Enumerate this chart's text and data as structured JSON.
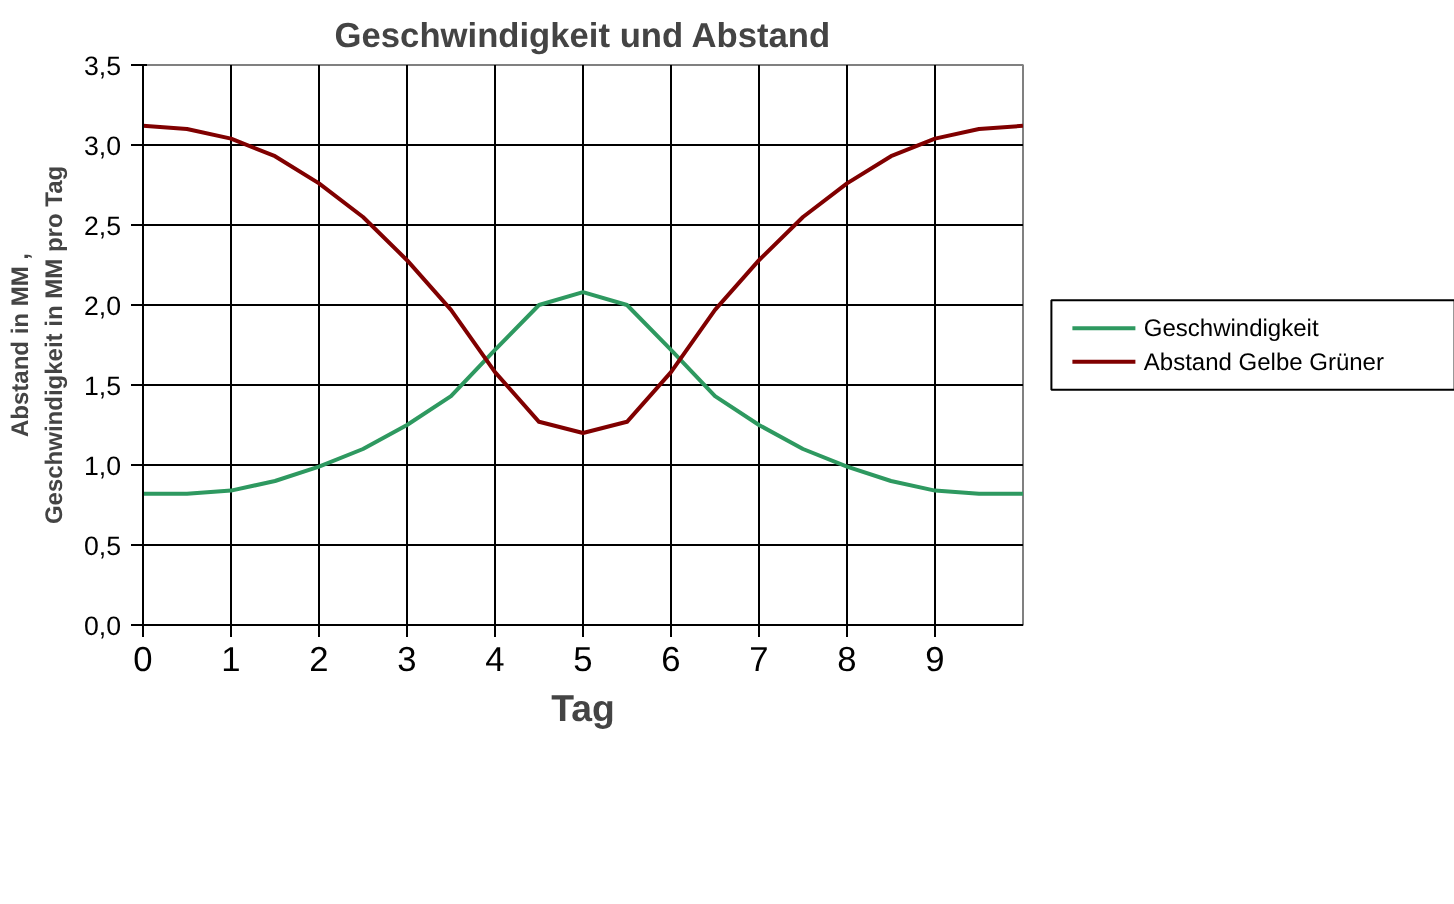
{
  "chart_data": {
    "type": "line",
    "title": "Geschwindigkeit und Abstand",
    "xlabel": "Tag",
    "ylabel": "Abstand in MM ,\nGeschwindigkeit in MM pro Tag",
    "x": [
      0,
      0.5,
      1,
      1.5,
      2,
      2.5,
      3,
      3.5,
      4,
      4.5,
      5,
      5.5,
      6,
      6.5,
      7,
      7.5,
      8,
      8.5,
      9,
      9.5,
      10
    ],
    "series": [
      {
        "name": "Geschwindigkeit",
        "color": "#2e9960",
        "values": [
          0.82,
          0.82,
          0.84,
          0.9,
          0.99,
          1.1,
          1.25,
          1.43,
          1.72,
          2.0,
          2.08,
          2.0,
          1.72,
          1.43,
          1.25,
          1.1,
          0.99,
          0.9,
          0.84,
          0.82,
          0.82
        ]
      },
      {
        "name": "Abstand Gelbe Grüner",
        "color": "#800000",
        "values": [
          3.12,
          3.1,
          3.04,
          2.93,
          2.76,
          2.55,
          2.28,
          1.97,
          1.58,
          1.27,
          1.2,
          1.27,
          1.58,
          1.97,
          2.28,
          2.55,
          2.76,
          2.93,
          3.04,
          3.1,
          3.12
        ]
      }
    ],
    "xlim": [
      0,
      10
    ],
    "xticks": [
      0,
      1,
      2,
      3,
      4,
      5,
      6,
      7,
      8,
      9
    ],
    "ylim": [
      0,
      3.5
    ],
    "yticks": [
      {
        "value": 0,
        "label": "0,0"
      },
      {
        "value": 0.5,
        "label": "0,5"
      },
      {
        "value": 1,
        "label": "1,0"
      },
      {
        "value": 1.5,
        "label": "1,5"
      },
      {
        "value": 2,
        "label": "2,0"
      },
      {
        "value": 2.5,
        "label": "2,5"
      },
      {
        "value": 3,
        "label": "3,0"
      },
      {
        "value": 3.5,
        "label": "3,5"
      }
    ],
    "grid": true,
    "legend": "right",
    "marker": "none",
    "line_style": "solid"
  }
}
